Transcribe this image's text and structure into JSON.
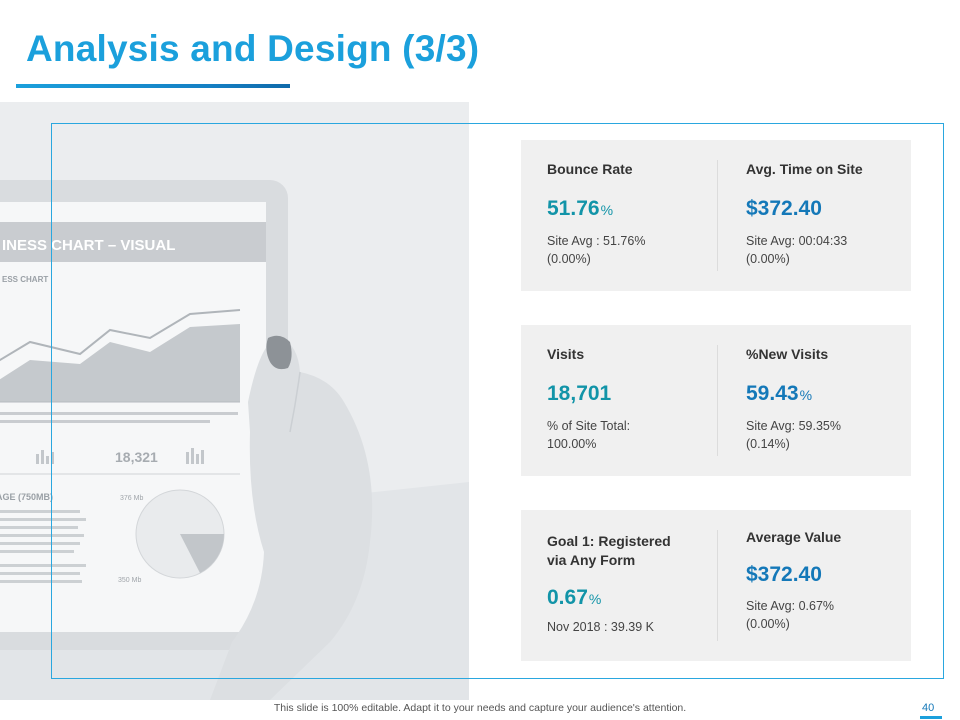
{
  "slide": {
    "title": "Analysis and Design (3/3)",
    "footer": "This slide is 100% editable. Adapt it to your needs and capture your audience's attention.",
    "page_number": "40"
  },
  "photo": {
    "screen_header": "INESS CHART – VISUAL",
    "screen_subheader": "ESS CHART",
    "screen_big_number": "18,321",
    "screen_size_label": "AGE (750MB)",
    "screen_small_1": "376 Mb",
    "screen_small_2": "350 Mb"
  },
  "colors": {
    "accent": "#1ba0dc",
    "teal_value": "#1294a8",
    "blue_value": "#1478b8",
    "card_bg": "#f0f0f0"
  },
  "cards": [
    {
      "left": {
        "label": "Bounce Rate",
        "value": "51.76",
        "unit": "%",
        "sub1": "Site Avg : 51.76%",
        "sub2": "(0.00%)"
      },
      "right": {
        "label": "Avg. Time on Site",
        "value": "$372.40",
        "unit": "",
        "sub1": "Site Avg: 00:04:33",
        "sub2": "(0.00%)"
      }
    },
    {
      "left": {
        "label": "Visits",
        "value": "18,701",
        "unit": "",
        "sub1": "% of Site Total:",
        "sub2": "100.00%"
      },
      "right": {
        "label": "%New Visits",
        "value": "59.43",
        "unit": "%",
        "sub1": "Site Avg: 59.35%",
        "sub2": "(0.14%)"
      }
    },
    {
      "left": {
        "label1": "Goal 1: Registered",
        "label2": "via Any Form",
        "value": "0.67",
        "unit": "%",
        "sub1": "Nov 2018 : 39.39 K"
      },
      "right": {
        "label": "Average Value",
        "value": "$372.40",
        "unit": "",
        "sub1": "Site Avg: 0.67%",
        "sub2": "(0.00%)"
      }
    }
  ]
}
